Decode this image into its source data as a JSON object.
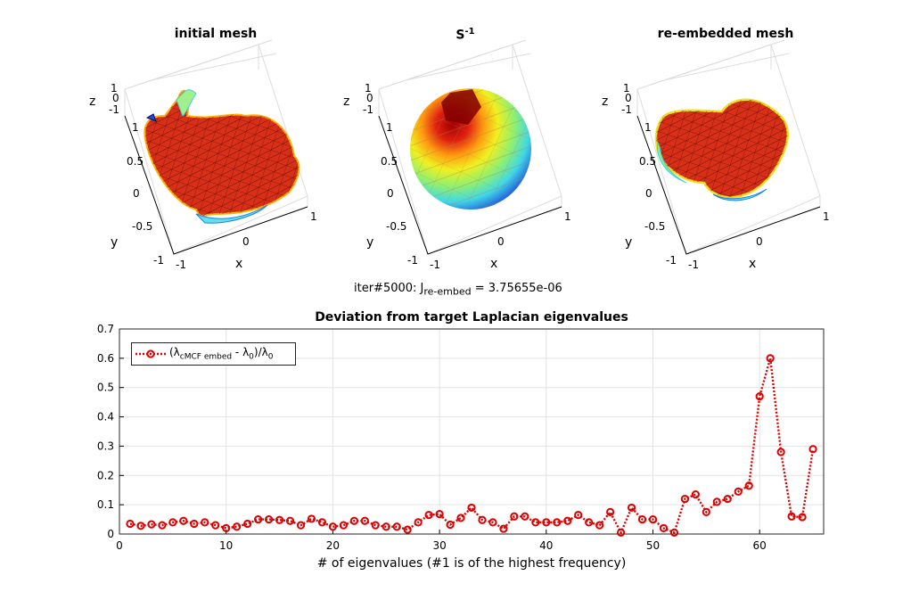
{
  "figure": {
    "panels": [
      {
        "title": "initial mesh",
        "xlabel": "x",
        "ylabel": "y",
        "zlabel": "z",
        "x_ticks": [
          "-1",
          "0",
          "1"
        ],
        "y_ticks": [
          "1",
          "0.5",
          "0",
          "-0.5",
          "-1"
        ],
        "z_ticks": [
          "1",
          "0",
          "-1"
        ]
      },
      {
        "title_base": "S",
        "title_sup": "-1",
        "xlabel": "x",
        "ylabel": "y",
        "zlabel": "z",
        "x_ticks": [
          "-1",
          "0",
          "1"
        ],
        "y_ticks": [
          "1",
          "0.5",
          "0",
          "-0.5",
          "-1"
        ],
        "z_ticks": [
          "1",
          "0",
          "-1"
        ]
      },
      {
        "title": "re-embedded mesh",
        "xlabel": "x",
        "ylabel": "y",
        "zlabel": "z",
        "x_ticks": [
          "-1",
          "0",
          "1"
        ],
        "y_ticks": [
          "1",
          "0.5",
          "0",
          "-0.5",
          "-1"
        ],
        "z_ticks": [
          "1",
          "0",
          "-1"
        ]
      }
    ],
    "iteration_label": {
      "prefix": "iter#5000: J",
      "subscript": "re-embed",
      "suffix": " = 3.75655e-06"
    },
    "colors": {
      "series": "#dd0000",
      "grid": "#e3e3e3",
      "mesh_hot": "#b00000",
      "sphere_cold": "#3fd0e8"
    }
  },
  "chart_data": {
    "type": "line",
    "title": "Deviation from target Laplacian eigenvalues",
    "xlabel": "# of eigenvalues (#1 is of the highest frequency)",
    "ylabel": "",
    "xlim": [
      0,
      66
    ],
    "ylim": [
      0,
      0.7
    ],
    "x_ticks": [
      "0",
      "10",
      "20",
      "30",
      "40",
      "50",
      "60"
    ],
    "y_ticks": [
      "0",
      "0.1",
      "0.2",
      "0.3",
      "0.4",
      "0.5",
      "0.6",
      "0.7"
    ],
    "grid": true,
    "legend_position": "top-left",
    "legend": {
      "prefix": "(λ",
      "subscript": "cMCF embed",
      "middle": " - λ",
      "subscript2": "0",
      "suffix": ")/λ",
      "subscript3": "0"
    },
    "x": [
      1,
      2,
      3,
      4,
      5,
      6,
      7,
      8,
      9,
      10,
      11,
      12,
      13,
      14,
      15,
      16,
      17,
      18,
      19,
      20,
      21,
      22,
      23,
      24,
      25,
      26,
      27,
      28,
      29,
      30,
      31,
      32,
      33,
      34,
      35,
      36,
      37,
      38,
      39,
      40,
      41,
      42,
      43,
      44,
      45,
      46,
      47,
      48,
      49,
      50,
      51,
      52,
      53,
      54,
      55,
      56,
      57,
      58,
      59,
      60,
      61,
      62,
      63,
      64,
      65
    ],
    "series": [
      {
        "values": [
          0.035,
          0.028,
          0.033,
          0.03,
          0.04,
          0.045,
          0.035,
          0.04,
          0.03,
          0.02,
          0.025,
          0.035,
          0.05,
          0.05,
          0.048,
          0.045,
          0.03,
          0.052,
          0.04,
          0.025,
          0.03,
          0.045,
          0.045,
          0.03,
          0.025,
          0.025,
          0.015,
          0.04,
          0.065,
          0.068,
          0.032,
          0.055,
          0.09,
          0.048,
          0.04,
          0.018,
          0.06,
          0.06,
          0.04,
          0.04,
          0.04,
          0.045,
          0.065,
          0.04,
          0.03,
          0.075,
          0.005,
          0.09,
          0.05,
          0.05,
          0.02,
          0.005,
          0.12,
          0.135,
          0.075,
          0.11,
          0.12,
          0.145,
          0.165,
          0.47,
          0.6,
          0.28,
          0.06,
          0.058,
          0.29
        ]
      }
    ]
  }
}
